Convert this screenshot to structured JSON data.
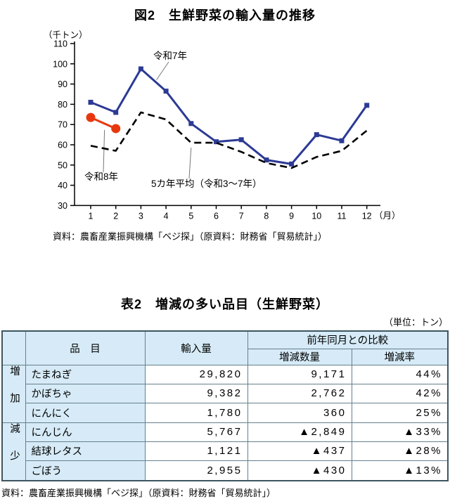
{
  "colors": {
    "line_reiwa7": "#2c3a95",
    "line_reiwa8": "#e7380d",
    "line_average": "#000000",
    "table_header_bg": "#d6ebf7",
    "table_border": "#64808d"
  },
  "chart_data": [
    {
      "type": "line",
      "title": "図2　生鮮野菜の輸入量の推移",
      "y_unit": "（千トン）",
      "x_unit": "（月）",
      "xlabel": "月",
      "ylabel": "千トン",
      "ylim": [
        30,
        110
      ],
      "ytick_step": 10,
      "grid": false,
      "x": [
        1,
        2,
        3,
        4,
        5,
        6,
        7,
        8,
        9,
        10,
        11,
        12
      ],
      "series": [
        {
          "name": "令和7年",
          "color": "#2c3a95",
          "line": "solid",
          "marker": "square",
          "values": [
            81,
            76,
            97.5,
            86.5,
            70.5,
            61.5,
            62.5,
            52.5,
            50.5,
            65,
            62,
            79.5
          ]
        },
        {
          "name": "令和8年",
          "color": "#e7380d",
          "line": "solid",
          "marker": "circle",
          "values": [
            73.5,
            68
          ]
        },
        {
          "name": "5カ年平均（令和3〜7年）",
          "color": "#000000",
          "line": "dashed",
          "marker": "none",
          "values": [
            59.5,
            57,
            76,
            72.5,
            61,
            61,
            56.5,
            51,
            48.5,
            54,
            57,
            67
          ]
        }
      ],
      "source": "資料：農畜産業振興機構「ベジ探」（原資料：財務省「貿易統計」）"
    },
    {
      "type": "table",
      "title": "表2　増減の多い品目（生鮮野菜）",
      "unit": "（単位：トン）",
      "headers": {
        "item": "品　目",
        "import": "輸入量",
        "compare": "前年同月との比較",
        "qty": "増減数量",
        "rate": "増減率"
      },
      "groups": [
        {
          "label": "増加",
          "rowspan": 3
        },
        {
          "label": "減少",
          "rowspan": 3
        }
      ],
      "rows": [
        {
          "group": "増加",
          "item": "たまねぎ",
          "import": "29,820",
          "qty": "9,171",
          "rate": "44%"
        },
        {
          "group": "増加",
          "item": "かぼちゃ",
          "import": "9,382",
          "qty": "2,762",
          "rate": "42%"
        },
        {
          "group": "増加",
          "item": "にんにく",
          "import": "1,780",
          "qty": "360",
          "rate": "25%"
        },
        {
          "group": "減少",
          "item": "にんじん",
          "import": "5,767",
          "qty": "▲2,849",
          "rate": "▲33%"
        },
        {
          "group": "減少",
          "item": "結球レタス",
          "import": "1,121",
          "qty": "▲437",
          "rate": "▲28%"
        },
        {
          "group": "減少",
          "item": "ごぼう",
          "import": "2,955",
          "qty": "▲430",
          "rate": "▲13%"
        }
      ],
      "source": "資料：農畜産業振興機構「ベジ探」（原資料：財務省「貿易統計」）"
    }
  ]
}
